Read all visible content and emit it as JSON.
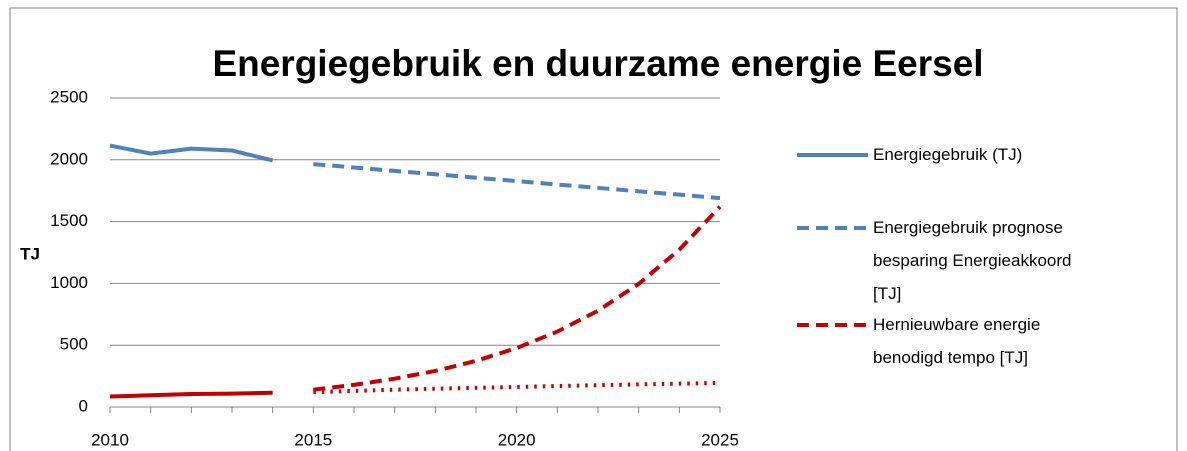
{
  "chart_data": {
    "type": "line",
    "title": "Energiegebruik en duurzame energie Eersel",
    "ylabel": "TJ",
    "x": [
      2010,
      2011,
      2012,
      2013,
      2014,
      2015,
      2016,
      2017,
      2018,
      2019,
      2020,
      2021,
      2022,
      2023,
      2024,
      2025
    ],
    "xlim": [
      2010,
      2025
    ],
    "xticks": [
      2010,
      2015,
      2020,
      2025
    ],
    "ylim": [
      0,
      2500
    ],
    "yticks": [
      0,
      500,
      1000,
      1500,
      2000,
      2500
    ],
    "grid": true,
    "legend": "right",
    "series": [
      {
        "name": "Energiegebruik (TJ)",
        "color": "#4f81bd",
        "dash": "solid",
        "values": [
          2115,
          2050,
          2090,
          2075,
          1995,
          null,
          null,
          null,
          null,
          null,
          null,
          null,
          null,
          null,
          null,
          null
        ]
      },
      {
        "name": "Energiegebruik prognose besparing Energieakkoord [TJ]",
        "color": "#4f81bd",
        "dash": "dashed",
        "values": [
          null,
          null,
          null,
          null,
          null,
          1965,
          1938,
          1910,
          1883,
          1855,
          1828,
          1800,
          1773,
          1745,
          1718,
          1690
        ]
      },
      {
        "name": "Hernieuwbare energie benodigd tempo [TJ]",
        "color": "#c00000",
        "dash": "dashed",
        "values": [
          null,
          null,
          null,
          null,
          null,
          140,
          179,
          229,
          292,
          373,
          477,
          610,
          779,
          996,
          1273,
          1620
        ]
      },
      {
        "color": "#c00000",
        "dash": "solid",
        "values": [
          85,
          95,
          105,
          108,
          115,
          null,
          null,
          null,
          null,
          null,
          null,
          null,
          null,
          null,
          null,
          null
        ]
      },
      {
        "color": "#c00000",
        "dash": "dotted",
        "values": [
          null,
          null,
          null,
          null,
          null,
          120,
          130,
          140,
          148,
          155,
          162,
          170,
          176,
          183,
          189,
          195
        ]
      }
    ]
  }
}
